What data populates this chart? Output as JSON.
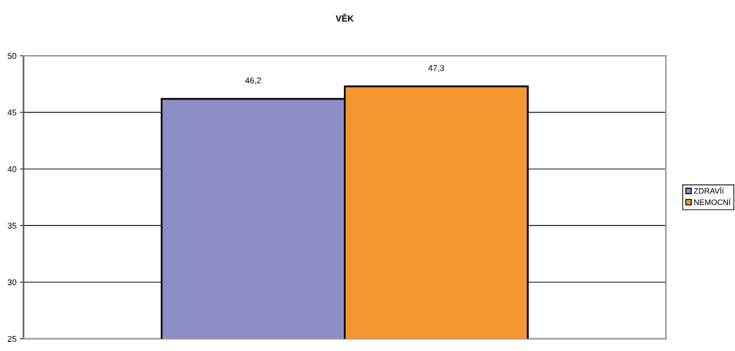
{
  "chart_data": {
    "type": "bar",
    "title": "VĚK",
    "categories": [
      null
    ],
    "series": [
      {
        "name": "ZDRAVÍí",
        "color": "#8e8ec6",
        "values": [
          46.2
        ],
        "value_labels": [
          "46,2"
        ]
      },
      {
        "name": "NEMOCNÍ",
        "color": "#f5972f",
        "values": [
          47.3
        ],
        "value_labels": [
          "47,3"
        ]
      }
    ],
    "ylim": [
      25,
      50
    ],
    "yticks": [
      25,
      30,
      35,
      40,
      45,
      50
    ],
    "grid": "y",
    "legend": "right"
  }
}
